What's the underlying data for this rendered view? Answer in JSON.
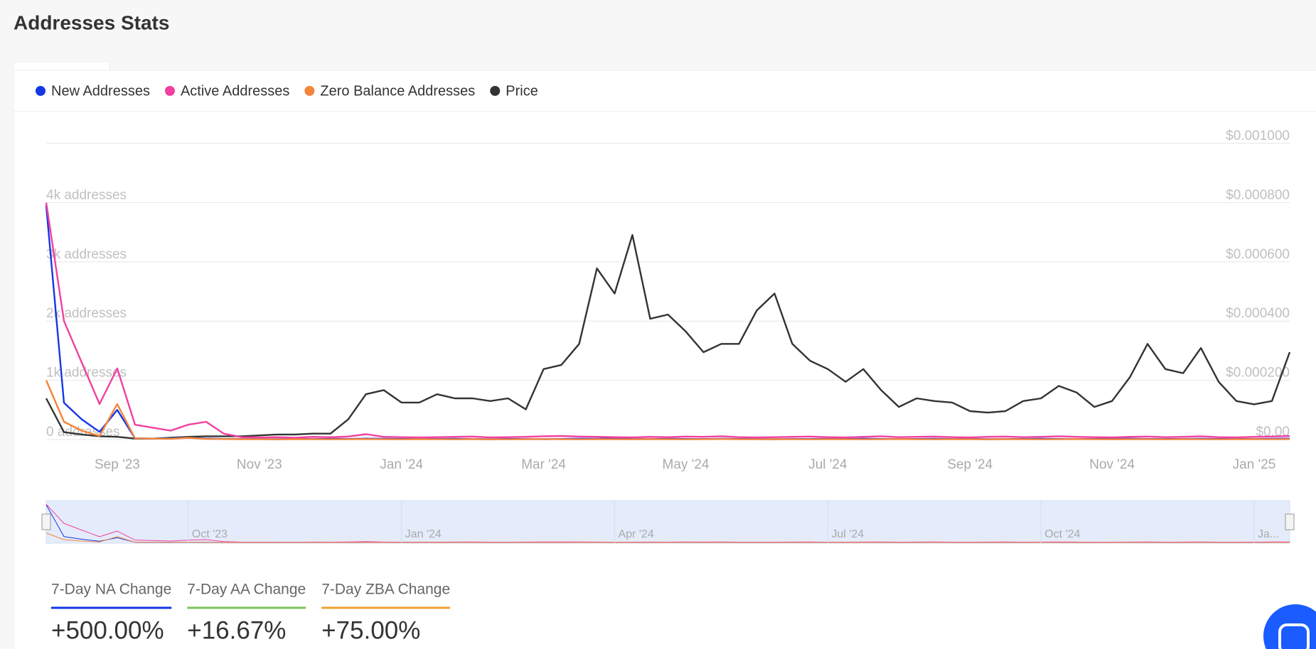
{
  "header": {
    "title": "Addresses Stats"
  },
  "chart_data": {
    "type": "line",
    "categories": [
      null,
      null,
      null,
      null,
      "Sep '23",
      null,
      null,
      null,
      null,
      null,
      null,
      null,
      "Nov '23",
      null,
      null,
      null,
      null,
      null,
      null,
      null,
      "Jan '24",
      null,
      null,
      null,
      null,
      null,
      null,
      null,
      "Mar '24",
      null,
      null,
      null,
      null,
      null,
      null,
      null,
      "May '24",
      null,
      null,
      null,
      null,
      null,
      null,
      null,
      "Jul '24",
      null,
      null,
      null,
      null,
      null,
      null,
      null,
      "Sep '24",
      null,
      null,
      null,
      null,
      null,
      null,
      null,
      "Nov '24",
      null,
      null,
      null,
      null,
      null,
      null,
      null,
      "Jan '25",
      null,
      null
    ],
    "navigator_categories": [
      null,
      null,
      null,
      null,
      null,
      null,
      null,
      null,
      "Oct '23",
      null,
      null,
      null,
      null,
      null,
      null,
      null,
      null,
      null,
      null,
      null,
      "Jan '24",
      null,
      null,
      null,
      null,
      null,
      null,
      null,
      null,
      null,
      null,
      null,
      "Apr '24",
      null,
      null,
      null,
      null,
      null,
      null,
      null,
      null,
      null,
      null,
      null,
      "Jul '24",
      null,
      null,
      null,
      null,
      null,
      null,
      null,
      null,
      null,
      null,
      null,
      "Oct '24",
      null,
      null,
      null,
      null,
      null,
      null,
      null,
      null,
      null,
      null,
      null,
      "Ja...",
      null,
      null
    ],
    "series": [
      {
        "name": "New Addresses",
        "color": "#1437e6",
        "values": [
          3950,
          620,
          340,
          130,
          500,
          20,
          15,
          20,
          30,
          15,
          10,
          8,
          8,
          6,
          10,
          8,
          12,
          10,
          15,
          12,
          10,
          8,
          10,
          12,
          8,
          6,
          10,
          8,
          6,
          10,
          14,
          12,
          18,
          10,
          8,
          12,
          10,
          8,
          12,
          10,
          8,
          6,
          10,
          8,
          12,
          10,
          14,
          10,
          8,
          10,
          12,
          8,
          10,
          6,
          8,
          10,
          12,
          10,
          8,
          10,
          12,
          14,
          10,
          8,
          10,
          12,
          10,
          8,
          10,
          12,
          15
        ]
      },
      {
        "name": "Active Addresses",
        "color": "#f23fa0",
        "values": [
          4000,
          2000,
          1300,
          600,
          1200,
          250,
          200,
          150,
          250,
          300,
          100,
          40,
          35,
          40,
          30,
          45,
          40,
          50,
          90,
          45,
          40,
          35,
          40,
          45,
          50,
          35,
          40,
          45,
          55,
          60,
          50,
          45,
          40,
          35,
          45,
          40,
          50,
          45,
          55,
          40,
          35,
          40,
          45,
          50,
          40,
          35,
          45,
          55,
          40,
          45,
          50,
          40,
          35,
          45,
          50,
          40,
          45,
          55,
          45,
          40,
          35,
          45,
          50,
          40,
          45,
          55,
          40,
          35,
          45,
          50,
          60
        ]
      },
      {
        "name": "Zero Balance Addresses",
        "color": "#f5853a",
        "values": [
          1000,
          300,
          150,
          60,
          600,
          20,
          15,
          12,
          30,
          10,
          8,
          6,
          5,
          4,
          6,
          5,
          4,
          5,
          8,
          5,
          4,
          6,
          5,
          4,
          6,
          5,
          4,
          5,
          8,
          5,
          4,
          6,
          5,
          4,
          6,
          5,
          4,
          5,
          8,
          5,
          4,
          6,
          5,
          4,
          6,
          5,
          4,
          5,
          8,
          5,
          4,
          6,
          5,
          4,
          6,
          5,
          4,
          5,
          8,
          5,
          4,
          6,
          5,
          4,
          6,
          5,
          4,
          5,
          6,
          5,
          7
        ]
      },
      {
        "name": "Price",
        "color": "#333333",
        "axis": "y2",
        "values": [
          0.000139,
          2.5e-05,
          1.7e-05,
          1.1e-05,
          9e-06,
          3e-06,
          3e-06,
          6e-06,
          9e-06,
          1.1e-05,
          1.1e-05,
          1.1e-05,
          1.4e-05,
          1.7e-05,
          1.7e-05,
          2e-05,
          2e-05,
          6.8e-05,
          0.000153,
          0.000167,
          0.000125,
          0.000125,
          0.000153,
          0.000139,
          0.000139,
          0.00013,
          0.000139,
          0.000102,
          0.000238,
          0.000252,
          0.000323,
          0.000578,
          0.000493,
          0.000691,
          0.000408,
          0.000422,
          0.000365,
          0.000295,
          0.000323,
          0.000323,
          0.000436,
          0.000493,
          0.000323,
          0.000266,
          0.000238,
          0.000195,
          0.000238,
          0.000167,
          0.00011,
          0.000139,
          0.00013,
          0.000125,
          9.6e-05,
          9.1e-05,
          9.6e-05,
          0.00013,
          0.000139,
          0.000181,
          0.000159,
          0.00011,
          0.00013,
          0.00021,
          0.000323,
          0.000238,
          0.000224,
          0.000309,
          0.000195,
          0.00013,
          0.000119,
          0.00013,
          0.000295
        ]
      }
    ],
    "ylim": [
      0,
      5000
    ],
    "yticks": [
      {
        "value": 0,
        "label": "0 addresses"
      },
      {
        "value": 1000,
        "label": "1k addresses"
      },
      {
        "value": 2000,
        "label": "2k addresses"
      },
      {
        "value": 3000,
        "label": "3k addresses"
      },
      {
        "value": 4000,
        "label": "4k addresses"
      }
    ],
    "y2lim": [
      0,
      0.001
    ],
    "y2ticks": [
      {
        "value": 0,
        "label": "$0.00"
      },
      {
        "value": 0.0002,
        "label": "$0.000200"
      },
      {
        "value": 0.0004,
        "label": "$0.000400"
      },
      {
        "value": 0.0006,
        "label": "$0.000600"
      },
      {
        "value": 0.0008,
        "label": "$0.000800"
      },
      {
        "value": 0.001,
        "label": "$0.001000"
      }
    ],
    "grid": true
  },
  "stats": [
    {
      "label": "7-Day NA Change",
      "value": "+500.00%",
      "color": "#1437e6"
    },
    {
      "label": "7-Day AA Change",
      "value": "+16.67%",
      "color": "#7cc35a"
    },
    {
      "label": "7-Day ZBA Change",
      "value": "+75.00%",
      "color": "#f0a030"
    }
  ]
}
